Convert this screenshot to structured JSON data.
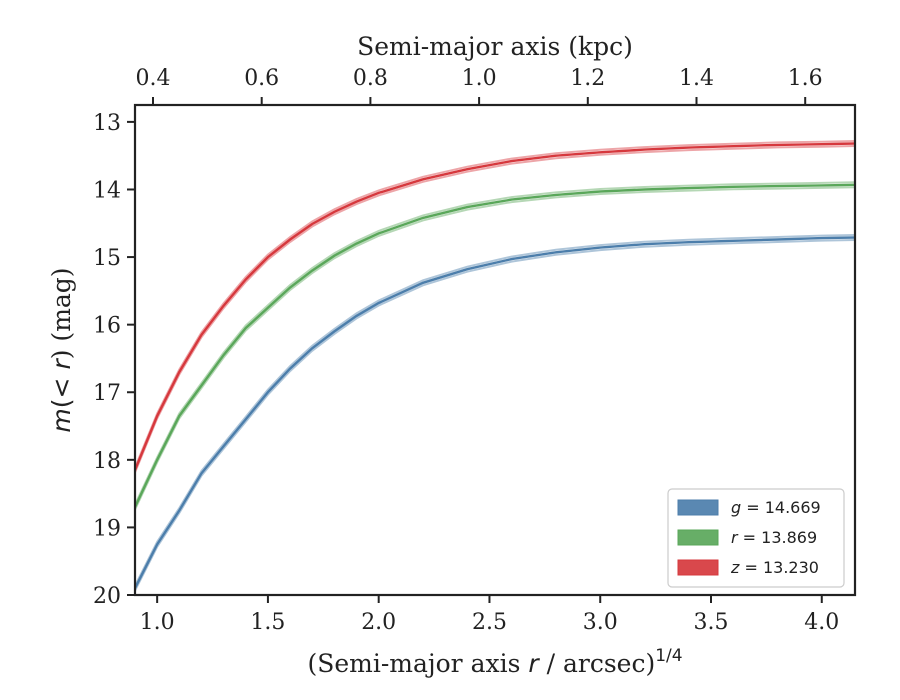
{
  "chart_data": {
    "type": "line",
    "xlabel_bottom": "(Semi-major axis ",
    "xlabel_bottom_var": "r",
    "xlabel_bottom_tail": " / arcsec)",
    "xlabel_bottom_exp": "1/4",
    "xlabel_top": "Semi-major axis (kpc)",
    "ylabel_pre": "m",
    "ylabel_mid": "(< ",
    "ylabel_var": "r",
    "ylabel_post": ") (mag)",
    "xlim": [
      0.9,
      4.15
    ],
    "ylim": [
      20.0,
      12.75
    ],
    "y_inverted": true,
    "x_ticks": [
      "1.0",
      "1.5",
      "2.0",
      "2.5",
      "3.0",
      "3.5",
      "4.0"
    ],
    "y_ticks": [
      "13",
      "14",
      "15",
      "16",
      "17",
      "18",
      "19",
      "20"
    ],
    "top_axis_ticks": [
      "0.4",
      "0.6",
      "0.8",
      "1.0",
      "1.2",
      "1.4",
      "1.6"
    ],
    "legend_position": "lower-right",
    "series": [
      {
        "name": "g",
        "label_value": "= 14.669",
        "color": "#4c7eab",
        "x": [
          0.9,
          1.0,
          1.1,
          1.2,
          1.3,
          1.4,
          1.5,
          1.6,
          1.7,
          1.8,
          1.9,
          2.0,
          2.2,
          2.4,
          2.6,
          2.8,
          3.0,
          3.2,
          3.4,
          3.6,
          3.8,
          4.0,
          4.15
        ],
        "y": [
          19.9,
          19.25,
          18.75,
          18.2,
          17.8,
          17.4,
          17.0,
          16.65,
          16.35,
          16.1,
          15.87,
          15.68,
          15.38,
          15.18,
          15.03,
          14.93,
          14.86,
          14.81,
          14.78,
          14.76,
          14.74,
          14.72,
          14.71
        ]
      },
      {
        "name": "r",
        "label_value": "= 13.869",
        "color": "#5aa75a",
        "x": [
          0.9,
          1.0,
          1.1,
          1.2,
          1.3,
          1.4,
          1.5,
          1.6,
          1.7,
          1.8,
          1.9,
          2.0,
          2.2,
          2.4,
          2.6,
          2.8,
          3.0,
          3.2,
          3.4,
          3.6,
          3.8,
          4.0,
          4.15
        ],
        "y": [
          18.7,
          18.0,
          17.35,
          16.9,
          16.45,
          16.05,
          15.75,
          15.45,
          15.2,
          14.98,
          14.8,
          14.65,
          14.42,
          14.26,
          14.15,
          14.08,
          14.03,
          14.0,
          13.98,
          13.96,
          13.95,
          13.94,
          13.93
        ]
      },
      {
        "name": "z",
        "label_value": "= 13.230",
        "color": "#d6383d",
        "x": [
          0.9,
          1.0,
          1.1,
          1.2,
          1.3,
          1.4,
          1.5,
          1.6,
          1.7,
          1.8,
          1.9,
          2.0,
          2.2,
          2.4,
          2.6,
          2.8,
          3.0,
          3.2,
          3.4,
          3.6,
          3.8,
          4.0,
          4.15
        ],
        "y": [
          18.15,
          17.35,
          16.7,
          16.15,
          15.72,
          15.33,
          15.0,
          14.74,
          14.51,
          14.33,
          14.18,
          14.05,
          13.85,
          13.7,
          13.58,
          13.5,
          13.45,
          13.41,
          13.38,
          13.36,
          13.34,
          13.33,
          13.32
        ]
      }
    ]
  }
}
